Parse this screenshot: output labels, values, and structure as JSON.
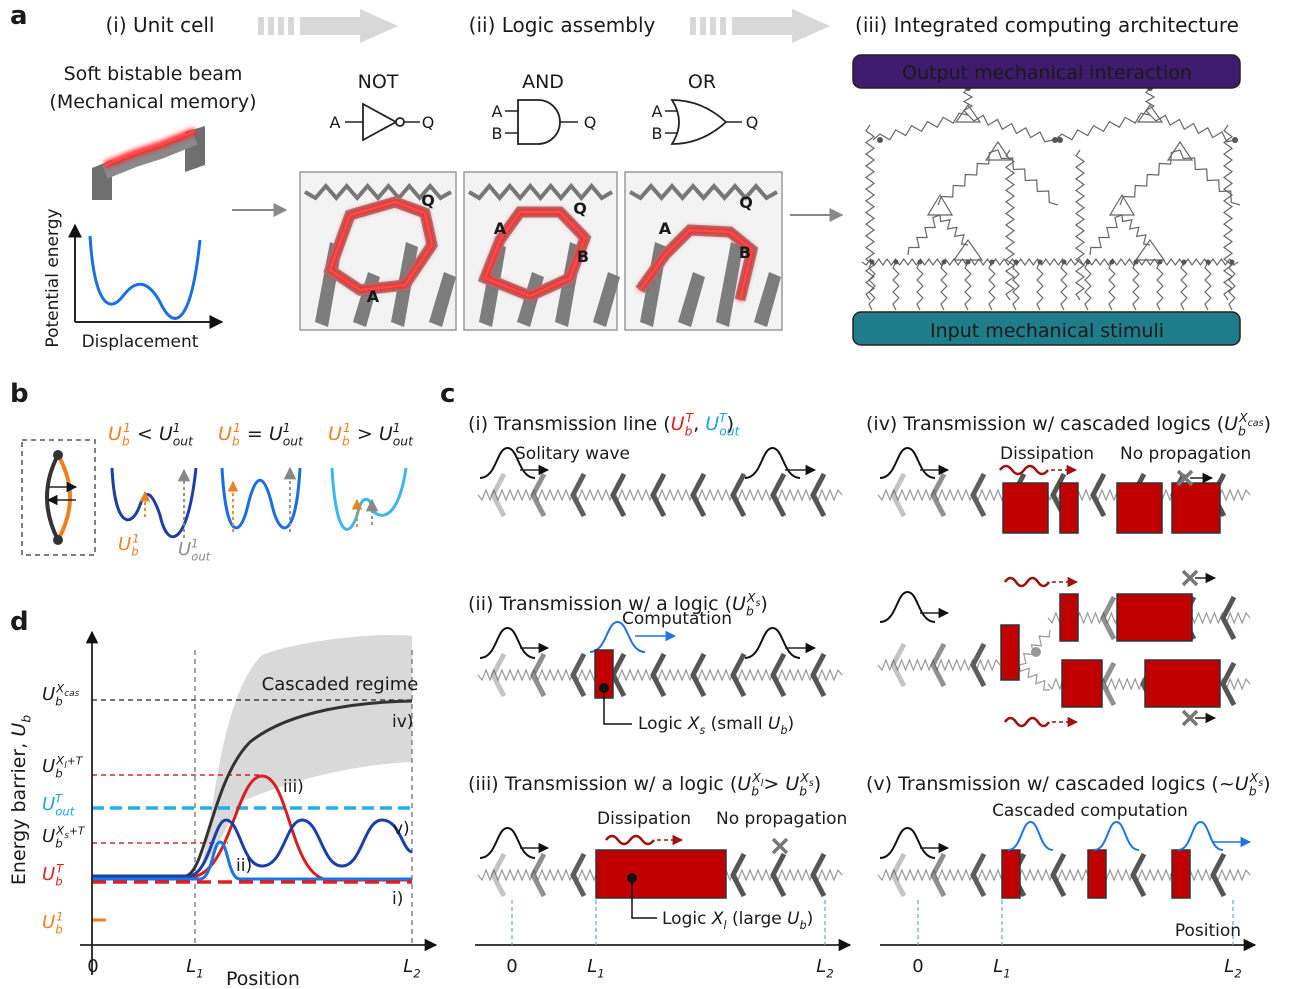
{
  "panel_a": {
    "label": "a",
    "steps": [
      "(i) Unit cell",
      "(ii) Logic assembly",
      "(iii) Integrated computing architecture"
    ],
    "unit_cell": {
      "title": [
        "Soft bistable beam",
        "(Mechanical memory)"
      ],
      "y_axis": "Potential energy",
      "x_axis": "Displacement"
    },
    "gates": [
      {
        "name": "NOT",
        "inputs": [
          "A"
        ],
        "output": "Q"
      },
      {
        "name": "AND",
        "inputs": [
          "A",
          "B"
        ],
        "output": "Q"
      },
      {
        "name": "OR",
        "inputs": [
          "A",
          "B"
        ],
        "output": "Q"
      }
    ],
    "assemblies": [
      {
        "labels": [
          "Q",
          "A"
        ]
      },
      {
        "labels": [
          "A",
          "Q",
          "B"
        ]
      },
      {
        "labels": [
          "A",
          "Q",
          "B"
        ]
      }
    ],
    "architecture": {
      "output": "Output mechanical interaction",
      "input": "Input mechanical stimuli"
    }
  },
  "panel_b": {
    "label": "b",
    "cases": [
      {
        "parts": [
          {
            "base": "U",
            "sub": "b",
            "sup": "1",
            "color": "#f07f1e"
          },
          " < ",
          {
            "base": "U",
            "sub": "out",
            "sup": "1"
          }
        ]
      },
      {
        "parts": [
          {
            "base": "U",
            "sub": "b",
            "sup": "1",
            "color": "#f07f1e"
          },
          " = ",
          {
            "base": "U",
            "sub": "out",
            "sup": "1"
          }
        ]
      },
      {
        "parts": [
          {
            "base": "U",
            "sub": "b",
            "sup": "1",
            "color": "#f07f1e"
          },
          " > ",
          {
            "base": "U",
            "sub": "out",
            "sup": "1"
          }
        ]
      }
    ],
    "well_labels": [
      {
        "base": "U",
        "sub": "b",
        "sup": "1",
        "color": "#f07f1e"
      },
      {
        "base": "U",
        "sub": "out",
        "sup": "1",
        "color": "#8c8c8c"
      }
    ]
  },
  "panel_c": {
    "label": "c",
    "rows": [
      {
        "title": {
          "parts": [
            "(i) Transmission line (",
            {
              "base": "U",
              "sub": "b",
              "sup": "T",
              "color": "#e02020"
            },
            ", ",
            {
              "base": "U",
              "sub": "out",
              "sup": "T",
              "color": "#1aa3e8"
            },
            ")"
          ]
        },
        "annotations": [
          "Solitary wave"
        ]
      },
      {
        "title": {
          "parts": [
            "(ii) Transmission w/ a logic (",
            {
              "base": "U",
              "sub": "b",
              "sup": "X",
              "sup_sub": "s"
            },
            ")"
          ]
        },
        "annotations": [
          "Computation",
          {
            "parts": [
              "Logic ",
              {
                "base": "X",
                "sub": "s"
              },
              " (small ",
              {
                "base": "U",
                "sub": "b"
              },
              ")"
            ]
          }
        ]
      },
      {
        "title": {
          "parts": [
            "(iii) Transmission w/ a logic (",
            {
              "base": "U",
              "sub": "b",
              "sup": "X",
              "sup_sub": "l"
            },
            "> ",
            {
              "base": "U",
              "sub": "b",
              "sup": "X",
              "sup_sub": "s"
            },
            ")"
          ]
        },
        "annotations": [
          "Dissipation",
          "No propagation",
          {
            "parts": [
              "Logic ",
              {
                "base": "X",
                "sub": "l"
              },
              " (large ",
              {
                "base": "U",
                "sub": "b"
              },
              ")"
            ]
          }
        ]
      },
      {
        "title": {
          "parts": [
            "(iv) Transmission w/ cascaded logics (",
            {
              "base": "U",
              "sub": "b",
              "sup": "X",
              "sup_sub": "cas"
            },
            ")"
          ]
        },
        "annotations": [
          "Dissipation",
          "No propagation"
        ]
      },
      {
        "title": {
          "parts": [
            "(v) Transmission w/ cascaded logics (~",
            {
              "base": "U",
              "sub": "b",
              "sup": "X",
              "sup_sub": "s"
            },
            ")"
          ]
        },
        "annotations": [
          "Cascaded computation"
        ]
      }
    ],
    "axes": [
      {
        "ticks": [
          "0",
          {
            "base": "L",
            "sub": "1"
          },
          {
            "base": "L",
            "sub": "2"
          }
        ]
      },
      {
        "label": "Position",
        "ticks": [
          "0",
          {
            "base": "L",
            "sub": "1"
          },
          {
            "base": "L",
            "sub": "2"
          }
        ]
      }
    ]
  },
  "panel_d": {
    "label": "d",
    "y_axis": {
      "parts": [
        "Energy barrier, ",
        {
          "base": "U",
          "sub": "b"
        }
      ]
    },
    "x_axis": {
      "label": "Position",
      "ticks": [
        "0",
        {
          "base": "L",
          "sub": "1"
        },
        {
          "base": "L",
          "sub": "2"
        }
      ]
    },
    "levels": [
      {
        "base": "U",
        "sub": "b",
        "sup": "X",
        "sup_sub": "cas"
      },
      {
        "base": "U",
        "sub": "b",
        "sup": "X",
        "sup_sub": "l",
        "sup_tail": "+T"
      },
      {
        "base": "U",
        "sub": "out",
        "sup": "T",
        "color": "#1aa3e8"
      },
      {
        "base": "U",
        "sub": "b",
        "sup": "X",
        "sup_sub": "s",
        "sup_tail": "+T"
      },
      {
        "base": "U",
        "sub": "b",
        "sup": "T",
        "color": "#e02020"
      },
      {
        "base": "U",
        "sub": "b",
        "sup": "1",
        "color": "#f07f1e"
      }
    ],
    "regime": "Cascaded regime",
    "curves": [
      "iv)",
      "iii)",
      "v)",
      "ii)",
      "i)"
    ]
  }
}
